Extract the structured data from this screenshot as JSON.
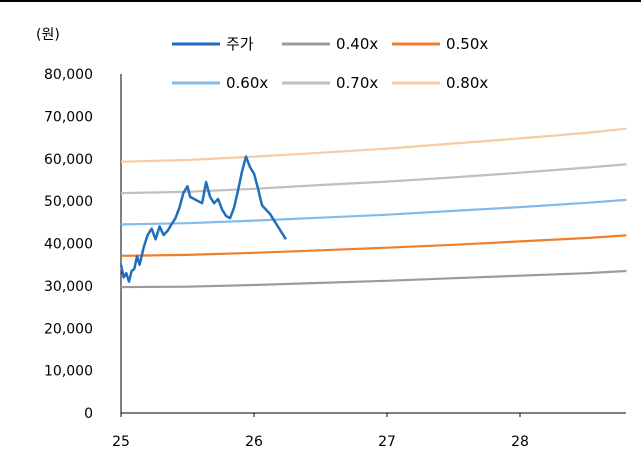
{
  "chart_data": {
    "type": "line",
    "unit_label": "(원)",
    "ylim": [
      0,
      80000
    ],
    "yticks": [
      "0",
      "10,000",
      "20,000",
      "30,000",
      "40,000",
      "50,000",
      "60,000",
      "70,000",
      "80,000"
    ],
    "xlim": [
      25,
      28.8
    ],
    "xticks": [
      "25",
      "26",
      "27",
      "28"
    ],
    "grid": false,
    "legend_position": "top",
    "series": [
      {
        "name": "주가",
        "color": "#1f6fbd",
        "x": [
          25.0,
          25.02,
          25.04,
          25.06,
          25.08,
          25.1,
          25.12,
          25.14,
          25.17,
          25.2,
          25.23,
          25.26,
          25.29,
          25.32,
          25.35,
          25.38,
          25.41,
          25.44,
          25.47,
          25.5,
          25.52,
          25.55,
          25.58,
          25.61,
          25.64,
          25.67,
          25.7,
          25.73,
          25.76,
          25.79,
          25.82,
          25.85,
          25.88,
          25.91,
          25.94,
          25.97,
          26.0,
          26.03,
          26.06,
          26.09,
          26.12,
          26.15,
          26.18,
          26.21,
          26.24
        ],
        "values": [
          35000,
          32000,
          33000,
          31000,
          33500,
          34000,
          37000,
          35000,
          39000,
          42000,
          43500,
          41000,
          44000,
          42000,
          43000,
          44500,
          46000,
          48500,
          52000,
          53500,
          51000,
          50500,
          50000,
          49500,
          54500,
          51000,
          49500,
          50500,
          48000,
          46500,
          46000,
          48500,
          52500,
          57000,
          60500,
          58000,
          56500,
          53000,
          49000,
          48000,
          47000,
          45500,
          44000,
          42500,
          41000
        ]
      },
      {
        "name": "0.40x",
        "color": "#9b9b9b",
        "x": [
          25,
          25.5,
          26,
          26.5,
          27,
          27.5,
          28,
          28.5,
          28.8
        ],
        "values": [
          29700,
          29800,
          30200,
          30700,
          31200,
          31800,
          32400,
          33000,
          33500
        ]
      },
      {
        "name": "0.50x",
        "color": "#f07f2a",
        "x": [
          25,
          25.5,
          26,
          26.5,
          27,
          27.5,
          28,
          28.5,
          28.8
        ],
        "values": [
          37100,
          37300,
          37800,
          38400,
          39000,
          39700,
          40500,
          41300,
          41900
        ]
      },
      {
        "name": "0.60x",
        "color": "#82bbea",
        "x": [
          25,
          25.5,
          26,
          26.5,
          27,
          27.5,
          28,
          28.5,
          28.8
        ],
        "values": [
          44500,
          44800,
          45400,
          46100,
          46800,
          47700,
          48600,
          49600,
          50300
        ]
      },
      {
        "name": "0.70x",
        "color": "#bfbfbf",
        "x": [
          25,
          25.5,
          26,
          26.5,
          27,
          27.5,
          28,
          28.5,
          28.8
        ],
        "values": [
          51900,
          52200,
          52900,
          53800,
          54600,
          55600,
          56700,
          57900,
          58700
        ]
      },
      {
        "name": "0.80x",
        "color": "#f8cba3",
        "x": [
          25,
          25.5,
          26,
          26.5,
          27,
          27.5,
          28,
          28.5,
          28.8
        ],
        "values": [
          59300,
          59700,
          60500,
          61400,
          62400,
          63600,
          64800,
          66100,
          67100
        ]
      }
    ]
  }
}
